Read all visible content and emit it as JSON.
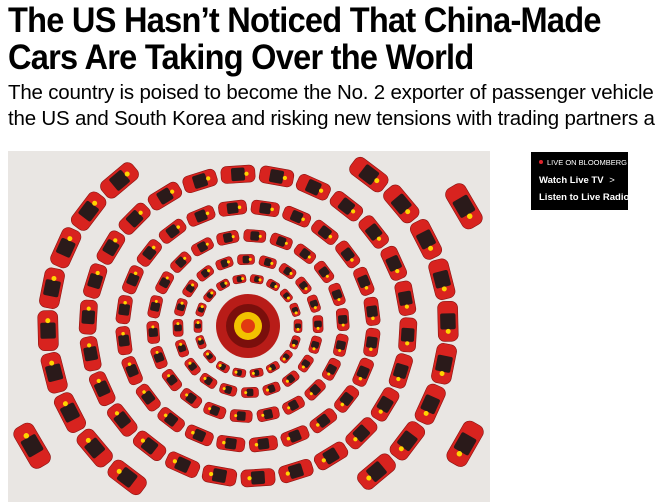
{
  "article": {
    "headline_line1": "The US Hasn’t Noticed That China-Made",
    "headline_line2": "Cars Are Taking Over the World",
    "dek_line1": "The country is poised to become the No. 2 exporter of passenger vehicle",
    "dek_line2": "the US and South Korea and risking new tensions with trading partners a",
    "hero_image": "concentric-rings-of-red-cars-with-chinese-flags"
  },
  "live_box": {
    "tag": "LIVE ON BLOOMBERG",
    "watch": "Watch Live TV",
    "watch_chevron": ">",
    "listen": "Listen to Live Radio",
    "dot_color": "#e0242b"
  },
  "colors": {
    "car_red": "#d8231f",
    "flag_star": "#ffd400"
  }
}
